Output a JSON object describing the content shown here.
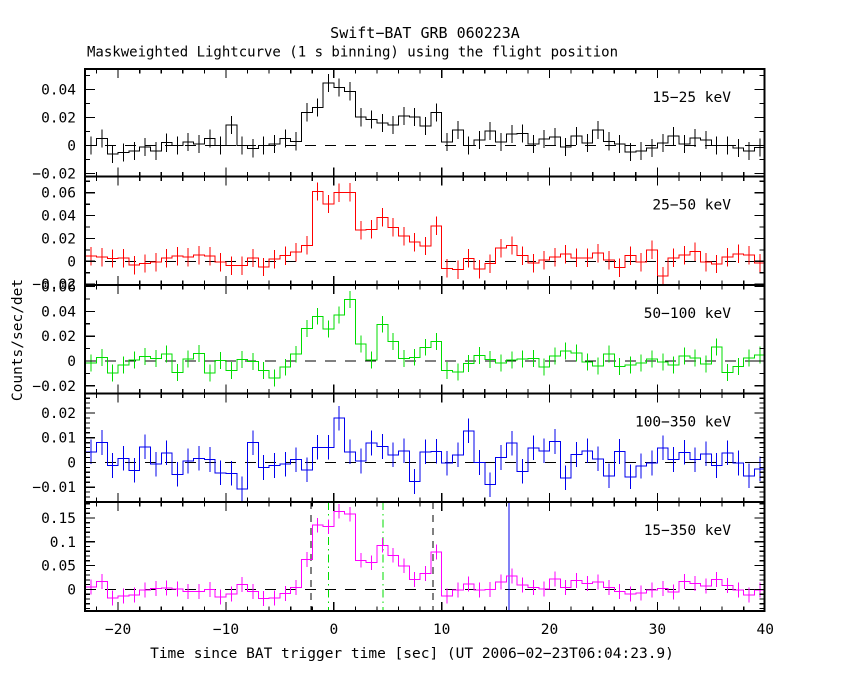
{
  "page": {
    "background": "#ffffff",
    "kind": "scientific-lightcurve-plot"
  },
  "chart_data": {
    "type": "line",
    "subtype": "step-histogram-with-errorbars",
    "title": "Swift−BAT GRB 060223A",
    "subtitle": "Maskweighted Lightcurve (1 s binning) using the flight position",
    "xlabel": "Time since BAT trigger time [sec] (UT 2006−02−23T06:04:23.9)",
    "ylabel": "Counts/sec/det",
    "x_bin_start": -23,
    "x_bin_width": 1,
    "xlim": [
      -23.07,
      39.93
    ],
    "x_major_ticks": [
      -20,
      -10,
      0,
      10,
      20,
      30,
      40
    ],
    "x_major_tick_labels": [
      "−20",
      "−10",
      "0",
      "10",
      "20",
      "30",
      "40"
    ],
    "x_minor_step": 2,
    "grid": false,
    "legend": "per-panel in-plot label, top right",
    "panels": [
      {
        "label": "15−25 keV",
        "color": "#000000",
        "ylim": [
          -0.0221,
          0.0546
        ],
        "y_major_ticks": [
          -0.02,
          0,
          0.02,
          0.04
        ],
        "y_major_tick_labels": [
          "−0.02",
          "0",
          "0.02",
          "0.04"
        ],
        "y_minor_step": 0.01,
        "err": 0.0065,
        "values": [
          0.0,
          0.005,
          -0.006,
          -0.005,
          -0.004,
          -0.001,
          -0.004,
          0.002,
          0.0,
          0.0025,
          0.001,
          0.005,
          0.0,
          0.0146,
          0.0,
          -0.002,
          0.0,
          0.001,
          0.005,
          0.003,
          0.0237,
          0.0271,
          0.0447,
          0.0415,
          0.0387,
          0.0202,
          0.0185,
          0.0161,
          0.0146,
          0.0211,
          0.0204,
          0.0139,
          0.0235,
          0.0025,
          0.0111,
          0.0,
          0.004,
          0.0104,
          0.0025,
          0.0082,
          0.0085,
          0.001,
          0.0046,
          0.006,
          -0.001,
          0.0068,
          0.0018,
          0.011,
          0.003,
          0.001,
          -0.0046,
          -0.004,
          -0.0018,
          0.0018,
          0.0068,
          0.001,
          0.0054,
          0.004,
          0.0,
          0.0,
          -0.0018,
          -0.004,
          -0.0014
        ]
      },
      {
        "label": "25−50 keV",
        "color": "#ff0000",
        "ylim": [
          -0.0207,
          0.0742
        ],
        "y_major_ticks": [
          -0.02,
          0,
          0.02,
          0.04,
          0.06
        ],
        "y_major_tick_labels": [
          "−0.02",
          "0",
          "0.02",
          "0.04",
          "0.06"
        ],
        "y_minor_step": 0.01,
        "err": 0.008,
        "values": [
          0.0045,
          0.0037,
          0.0024,
          0.0028,
          -0.0033,
          -0.0019,
          -0.0007,
          0.0028,
          0.0045,
          0.0037,
          0.0054,
          0.0045,
          -0.0007,
          -0.0038,
          -0.0038,
          0.003,
          -0.005,
          0.0019,
          0.0049,
          0.008,
          0.014,
          0.061,
          0.0502,
          0.0601,
          0.0604,
          0.0272,
          0.028,
          0.0385,
          0.0298,
          0.022,
          0.0167,
          0.0135,
          0.031,
          -0.0061,
          -0.0073,
          0.0027,
          -0.0068,
          -0.0021,
          0.0115,
          0.0138,
          0.0049,
          -0.0016,
          0.001,
          0.0037,
          0.0063,
          0.0031,
          0.0031,
          0.0071,
          0.001,
          -0.0056,
          0.0049,
          -0.0007,
          0.0101,
          -0.0129,
          0.0031,
          0.0054,
          0.0084,
          -0.0007,
          -0.0024,
          0.0037,
          0.0066,
          0.0054,
          -0.0016
        ]
      },
      {
        "label": "50−100 keV",
        "color": "#00dd00",
        "ylim": [
          -0.0262,
          0.0613
        ],
        "y_major_ticks": [
          -0.02,
          0,
          0.02,
          0.04,
          0.06
        ],
        "y_major_tick_labels": [
          "−0.02",
          "0",
          "0.02",
          "0.04",
          "0.06"
        ],
        "y_minor_step": 0.01,
        "err": 0.0068,
        "values": [
          -0.0016,
          0.0029,
          -0.0097,
          -0.0032,
          0.0008,
          0.0035,
          0.0019,
          0.0056,
          -0.0094,
          0.0016,
          0.006,
          -0.0097,
          0.0003,
          -0.0077,
          0.0013,
          -0.0003,
          -0.0077,
          -0.0137,
          -0.005,
          0.0055,
          0.0263,
          0.0361,
          0.0257,
          0.0372,
          0.0495,
          0.0137,
          0.0007,
          0.0296,
          0.0156,
          0.002,
          0.003,
          0.0111,
          0.0156,
          -0.0077,
          -0.0089,
          -0.0021,
          0.0045,
          0.0013,
          -0.0016,
          0.0008,
          0.0016,
          0.0019,
          -0.0048,
          0.004,
          0.0081,
          0.0065,
          -0.0008,
          -0.004,
          0.0056,
          -0.0045,
          -0.0032,
          -0.0016,
          0.0016,
          -0.0008,
          -0.0032,
          0.004,
          0.0024,
          -0.0024,
          0.0113,
          -0.0092,
          -0.0045,
          0.0024,
          0.0048
        ]
      },
      {
        "label": "100−350 keV",
        "color": "#0000ee",
        "ylim": [
          -0.016,
          0.0279
        ],
        "y_major_ticks": [
          -0.01,
          0,
          0.01,
          0.02
        ],
        "y_major_tick_labels": [
          "−0.01",
          "0",
          "0.01",
          "0.02"
        ],
        "y_minor_step": 0.002,
        "err": 0.005,
        "values": [
          0.0043,
          0.0081,
          -0.0012,
          0.0017,
          -0.0032,
          0.0063,
          -0.0007,
          0.0039,
          -0.0048,
          0.0006,
          0.0017,
          0.0012,
          -0.0042,
          -0.0044,
          -0.0107,
          0.008,
          -0.002,
          -0.0012,
          -0.0007,
          0.0011,
          -0.003,
          0.0061,
          0.0061,
          0.0179,
          0.0043,
          0.0006,
          0.0079,
          0.0065,
          0.0031,
          0.0047,
          -0.0077,
          0.0043,
          0.0045,
          -0.0003,
          0.0031,
          0.0128,
          0.0,
          -0.009,
          0.002,
          0.0078,
          -0.0036,
          0.0059,
          0.0047,
          0.0085,
          -0.0062,
          0.0032,
          0.0047,
          0.0015,
          -0.0054,
          0.0044,
          -0.0058,
          -0.0014,
          -0.0002,
          0.0059,
          0.0012,
          0.0041,
          0.0011,
          0.0035,
          -0.0012,
          0.0039,
          -0.0002,
          -0.0054,
          -0.0026
        ]
      },
      {
        "label": "15−350 keV",
        "color": "#ff00ff",
        "ylim": [
          -0.0454,
          0.1836
        ],
        "y_major_ticks": [
          0,
          0.05,
          0.1,
          0.15
        ],
        "y_major_tick_labels": [
          "0",
          "0.05",
          "0.1",
          "0.15"
        ],
        "y_minor_step": 0.01,
        "err": 0.0155,
        "values": [
          0.005,
          0.0164,
          -0.0181,
          -0.0139,
          -0.0118,
          -0.0013,
          0.0021,
          0.0029,
          0.0008,
          -0.0046,
          -0.0046,
          -0.0004,
          -0.016,
          -0.0097,
          0.0105,
          -0.0046,
          -0.0193,
          -0.0181,
          -0.0088,
          0.0038,
          0.0626,
          0.1348,
          0.1318,
          0.164,
          0.158,
          0.061,
          0.056,
          0.0926,
          0.0716,
          0.0495,
          0.0206,
          0.0335,
          0.0784,
          -0.0139,
          -0.0013,
          0.0113,
          -0.0013,
          -0.0004,
          0.0155,
          0.0282,
          0.0092,
          0.0038,
          0.0008,
          0.0218,
          0.0038,
          0.0189,
          0.0122,
          0.0155,
          0.0038,
          -0.0046,
          -0.0097,
          -0.0076,
          -0.0013,
          0.0021,
          -0.0055,
          0.0164,
          0.0122,
          0.0071,
          0.0206,
          0.008,
          -0.0013,
          -0.0118,
          -0.0013
        ],
        "vlines": [
          {
            "t": -2.1,
            "color": "#000000",
            "style": "dashed",
            "name": "burst-interval-start"
          },
          {
            "t": 9.2,
            "color": "#000000",
            "style": "dashed",
            "name": "burst-interval-end"
          },
          {
            "t": -0.5,
            "color": "#00dd00",
            "style": "dashdot",
            "name": "t50-interval-start"
          },
          {
            "t": 4.55,
            "color": "#00dd00",
            "style": "dashdot",
            "name": "t50-interval-end"
          },
          {
            "t": 16.24,
            "color": "#0000ee",
            "style": "solid",
            "name": "data-marker"
          }
        ]
      }
    ]
  }
}
